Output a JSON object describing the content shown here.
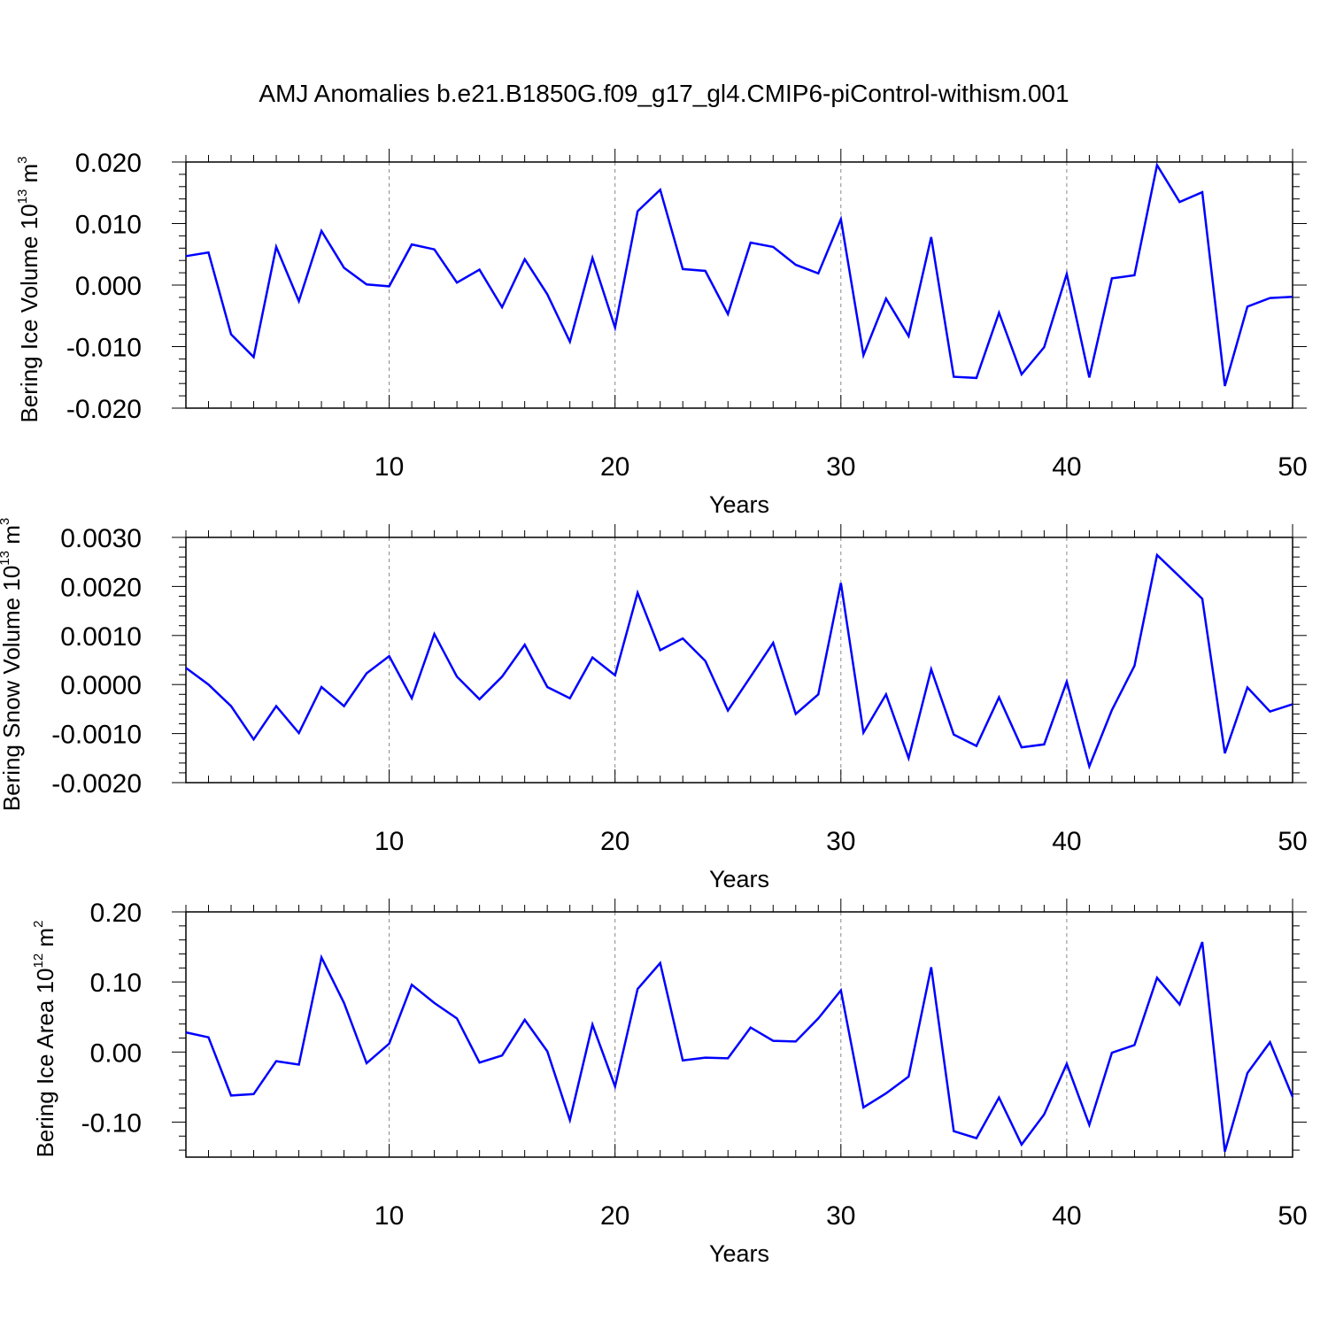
{
  "title": "AMJ Anomalies b.e21.B1850G.f09_g17_gl4.CMIP6-piControl-withism.001",
  "chart_data": [
    {
      "type": "line",
      "title": "",
      "xlabel": "Years",
      "ylabel_main": "Bering Ice Volume 10",
      "ylabel_exp": "13",
      "ylabel_unit": " m",
      "ylabel_unit_exp": "3",
      "xlim": [
        1,
        50
      ],
      "ylim": [
        -0.02,
        0.02
      ],
      "yticks": [
        -0.02,
        -0.01,
        0.0,
        0.01,
        0.02
      ],
      "ytick_labels": [
        "-0.020",
        "-0.010",
        "0.000",
        "0.010",
        "0.020"
      ],
      "xticks": [
        10,
        20,
        30,
        40,
        50
      ],
      "xtick_labels": [
        "10",
        "20",
        "30",
        "40",
        "50"
      ],
      "grid": "vertical dashed at major x ticks",
      "line_color": "#0000ff",
      "x": [
        1,
        2,
        3,
        4,
        5,
        6,
        7,
        8,
        9,
        10,
        11,
        12,
        13,
        14,
        15,
        16,
        17,
        18,
        19,
        20,
        21,
        22,
        23,
        24,
        25,
        26,
        27,
        28,
        29,
        30,
        31,
        32,
        33,
        34,
        35,
        36,
        37,
        38,
        39,
        40,
        41,
        42,
        43,
        44,
        45,
        46,
        47,
        48,
        49,
        50
      ],
      "values": [
        0.0047,
        0.0053,
        -0.008,
        -0.0117,
        0.0062,
        -0.0026,
        0.0088,
        0.0028,
        0.0001,
        -0.0002,
        0.0066,
        0.0058,
        0.0004,
        0.0025,
        -0.0036,
        0.0042,
        -0.0015,
        -0.0092,
        0.0044,
        -0.0069,
        0.012,
        0.0155,
        0.0026,
        0.0023,
        -0.0047,
        0.0069,
        0.0062,
        0.0033,
        0.0019,
        0.0107,
        -0.0114,
        -0.0022,
        -0.0083,
        0.0078,
        -0.0149,
        -0.0151,
        -0.0045,
        -0.0145,
        -0.0101,
        0.0018,
        -0.015,
        0.0011,
        0.0016,
        0.0195,
        0.0135,
        0.0151,
        -0.0164,
        -0.0035,
        -0.0021,
        -0.0019
      ]
    },
    {
      "type": "line",
      "title": "",
      "xlabel": "Years",
      "ylabel_main": "Bering Snow Volume 10",
      "ylabel_exp": "13",
      "ylabel_unit": " m",
      "ylabel_unit_exp": "3",
      "xlim": [
        1,
        50
      ],
      "ylim": [
        -0.002,
        0.003
      ],
      "yticks": [
        -0.002,
        -0.001,
        0.0,
        0.001,
        0.002,
        0.003
      ],
      "ytick_labels": [
        "-0.0020",
        "-0.0010",
        "0.0000",
        "0.0010",
        "0.0020",
        "0.0030"
      ],
      "xticks": [
        10,
        20,
        30,
        40,
        50
      ],
      "xtick_labels": [
        "10",
        "20",
        "30",
        "40",
        "50"
      ],
      "grid": "vertical dashed at major x ticks",
      "line_color": "#0000ff",
      "x": [
        1,
        2,
        3,
        4,
        5,
        6,
        7,
        8,
        9,
        10,
        11,
        12,
        13,
        14,
        15,
        16,
        17,
        18,
        19,
        20,
        21,
        22,
        23,
        24,
        25,
        26,
        27,
        28,
        29,
        30,
        31,
        32,
        33,
        34,
        35,
        36,
        37,
        38,
        39,
        40,
        41,
        42,
        43,
        44,
        45,
        46,
        47,
        48,
        49,
        50
      ],
      "values": [
        0.00034,
        0.0,
        -0.00044,
        -0.00112,
        -0.00044,
        -0.00099,
        -5e-05,
        -0.00044,
        0.00023,
        0.00058,
        -0.00028,
        0.00103,
        0.00016,
        -0.0003,
        0.00016,
        0.00081,
        -5e-05,
        -0.00028,
        0.00055,
        0.00019,
        0.00187,
        0.0007,
        0.00094,
        0.00048,
        -0.00053,
        0.00016,
        0.00085,
        -0.0006,
        -0.0002,
        0.00207,
        -0.00098,
        -0.0002,
        -0.0015,
        0.00031,
        -0.00102,
        -0.00125,
        -0.00026,
        -0.00128,
        -0.00122,
        6e-05,
        -0.00167,
        -0.00052,
        0.00038,
        0.00264,
        0.0022,
        0.00175,
        -0.0014,
        -6e-05,
        -0.00055,
        -0.0004
      ]
    },
    {
      "type": "line",
      "title": "",
      "xlabel": "Years",
      "ylabel_main": "Bering Ice Area 10",
      "ylabel_exp": "12",
      "ylabel_unit": " m",
      "ylabel_unit_exp": "2",
      "xlim": [
        1,
        50
      ],
      "ylim": [
        -0.15,
        0.2
      ],
      "yticks": [
        -0.1,
        0.0,
        0.1,
        0.2
      ],
      "ytick_labels": [
        "-0.10",
        "0.00",
        "0.10",
        "0.20"
      ],
      "xticks": [
        10,
        20,
        30,
        40,
        50
      ],
      "xtick_labels": [
        "10",
        "20",
        "30",
        "40",
        "50"
      ],
      "grid": "vertical dashed at major x ticks",
      "line_color": "#0000ff",
      "x": [
        1,
        2,
        3,
        4,
        5,
        6,
        7,
        8,
        9,
        10,
        11,
        12,
        13,
        14,
        15,
        16,
        17,
        18,
        19,
        20,
        21,
        22,
        23,
        24,
        25,
        26,
        27,
        28,
        29,
        30,
        31,
        32,
        33,
        34,
        35,
        36,
        37,
        38,
        39,
        40,
        41,
        42,
        43,
        44,
        45,
        46,
        47,
        48,
        49,
        50
      ],
      "values": [
        0.028,
        0.021,
        -0.062,
        -0.06,
        -0.013,
        -0.018,
        0.135,
        0.07,
        -0.016,
        0.012,
        0.096,
        0.07,
        0.048,
        -0.015,
        -0.005,
        0.046,
        0.001,
        -0.097,
        0.039,
        -0.049,
        0.09,
        0.127,
        -0.012,
        -0.008,
        -0.009,
        0.035,
        0.016,
        0.015,
        0.048,
        0.088,
        -0.079,
        -0.059,
        -0.035,
        0.121,
        -0.113,
        -0.123,
        -0.065,
        -0.132,
        -0.089,
        -0.017,
        -0.104,
        -0.001,
        0.01,
        0.106,
        0.068,
        0.157,
        -0.142,
        -0.03,
        0.014,
        -0.064
      ]
    }
  ]
}
